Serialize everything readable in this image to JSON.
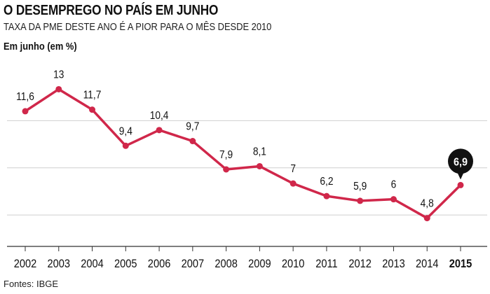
{
  "header": {
    "title": "O DESEMPREGO NO PAÍS EM JUNHO",
    "subtitle": "TAXA DA PME DESTE ANO É A PIOR PARA O MÊS DESDE 2010",
    "unit_label": "Em junho (em %)"
  },
  "footer": {
    "source": "Fontes: IBGE"
  },
  "colors": {
    "line": "#d0274a",
    "grid": "#cfcfcf",
    "axis": "#333333",
    "badge": "#111111"
  },
  "chart_data": {
    "type": "line",
    "title": "O DESEMPREGO NO PAÍS EM JUNHO",
    "subtitle": "TAXA DA PME DESTE ANO É A PIOR PARA O MÊS DESDE 2010",
    "xlabel": "",
    "ylabel": "Em junho (em %)",
    "categories": [
      "2002",
      "2003",
      "2004",
      "2005",
      "2006",
      "2007",
      "2008",
      "2009",
      "2010",
      "2011",
      "2012",
      "2013",
      "2014",
      "2015"
    ],
    "series": [
      {
        "values": [
          11.6,
          13,
          11.7,
          9.4,
          10.4,
          9.7,
          7.9,
          8.1,
          7,
          6.2,
          5.9,
          6,
          4.8,
          6.9
        ],
        "labels": [
          "11,6",
          "13",
          "11,7",
          "9,4",
          "10,4",
          "9,7",
          "7,9",
          "8,1",
          "7",
          "6,2",
          "5,9",
          "6",
          "4,8",
          "6,9"
        ]
      }
    ],
    "highlight_index": 13,
    "ylim": [
      3,
      14
    ],
    "grid": true,
    "gridlines": [
      5,
      8,
      11
    ],
    "legend": "none"
  }
}
